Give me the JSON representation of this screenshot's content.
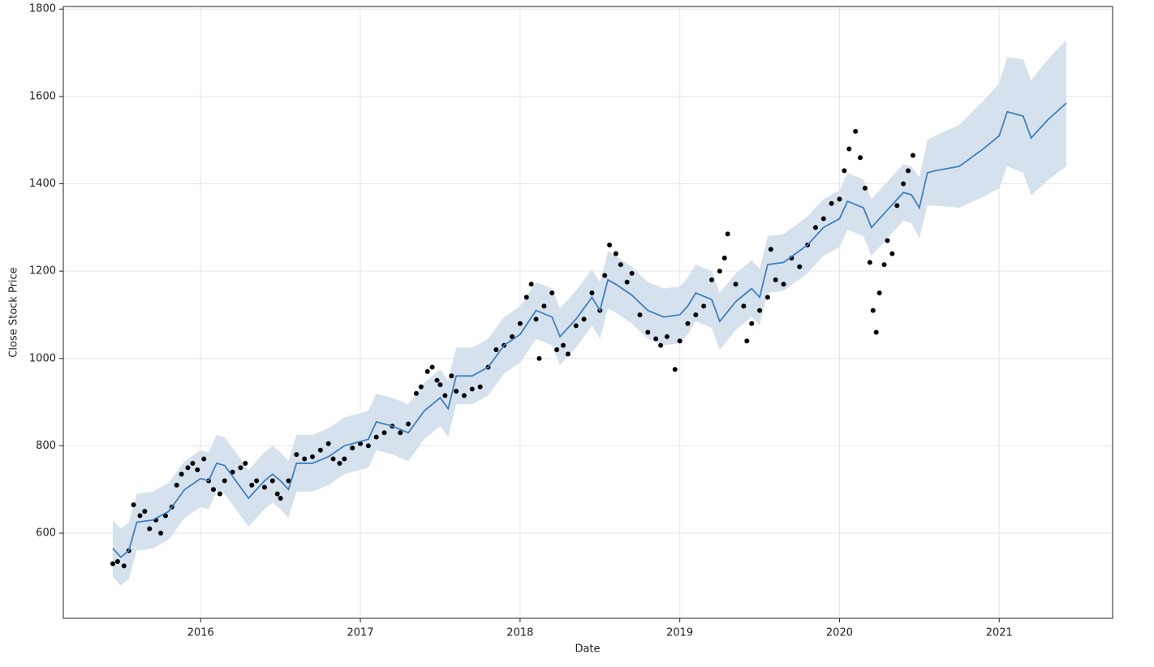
{
  "chart_data": {
    "type": "scatter",
    "xlabel": "Date",
    "ylabel": "Close Stock Price",
    "color": "#000000",
    "line_color": "#3f7fbf",
    "band_color": "#d5e2ed",
    "grid": true,
    "xlim": [
      2015.14,
      2021.71
    ],
    "ylim": [
      405,
      1806
    ],
    "xticks": [
      2016,
      2017,
      2018,
      2019,
      2020,
      2021
    ],
    "yticks": [
      600,
      800,
      1000,
      1200,
      1400,
      1600,
      1800
    ],
    "x": [
      2015.45,
      2015.48,
      2015.52,
      2015.55,
      2015.58,
      2015.62,
      2015.65,
      2015.68,
      2015.72,
      2015.75,
      2015.78,
      2015.82,
      2015.85,
      2015.88,
      2015.92,
      2015.95,
      2015.98,
      2016.02,
      2016.05,
      2016.08,
      2016.12,
      2016.15,
      2016.2,
      2016.25,
      2016.28,
      2016.32,
      2016.35,
      2016.4,
      2016.45,
      2016.48,
      2016.5,
      2016.55,
      2016.6,
      2016.65,
      2016.7,
      2016.75,
      2016.8,
      2016.83,
      2016.87,
      2016.9,
      2016.95,
      2017.0,
      2017.05,
      2017.1,
      2017.15,
      2017.2,
      2017.25,
      2017.3,
      2017.35,
      2017.38,
      2017.42,
      2017.45,
      2017.48,
      2017.5,
      2017.53,
      2017.57,
      2017.6,
      2017.65,
      2017.7,
      2017.75,
      2017.8,
      2017.85,
      2017.9,
      2017.95,
      2018.0,
      2018.04,
      2018.07,
      2018.1,
      2018.12,
      2018.15,
      2018.2,
      2018.23,
      2018.27,
      2018.3,
      2018.35,
      2018.4,
      2018.45,
      2018.5,
      2018.53,
      2018.56,
      2018.6,
      2018.63,
      2018.67,
      2018.7,
      2018.75,
      2018.8,
      2018.85,
      2018.88,
      2018.92,
      2018.97,
      2019.0,
      2019.05,
      2019.1,
      2019.15,
      2019.2,
      2019.25,
      2019.28,
      2019.3,
      2019.35,
      2019.4,
      2019.42,
      2019.45,
      2019.5,
      2019.55,
      2019.57,
      2019.6,
      2019.65,
      2019.7,
      2019.75,
      2019.8,
      2019.85,
      2019.9,
      2019.95,
      2020.0,
      2020.03,
      2020.06,
      2020.1,
      2020.13,
      2020.16,
      2020.19,
      2020.21,
      2020.23,
      2020.25,
      2020.28,
      2020.3,
      2020.33,
      2020.36,
      2020.4,
      2020.43,
      2020.46
    ],
    "values": [
      530,
      535,
      525,
      560,
      665,
      640,
      650,
      610,
      630,
      600,
      640,
      660,
      710,
      735,
      750,
      760,
      745,
      770,
      720,
      700,
      690,
      720,
      740,
      750,
      760,
      710,
      720,
      705,
      720,
      690,
      680,
      720,
      780,
      770,
      775,
      790,
      805,
      770,
      760,
      770,
      795,
      805,
      800,
      820,
      830,
      845,
      830,
      850,
      920,
      935,
      970,
      980,
      950,
      940,
      915,
      960,
      925,
      915,
      930,
      935,
      980,
      1020,
      1030,
      1050,
      1080,
      1140,
      1170,
      1090,
      1000,
      1120,
      1150,
      1020,
      1030,
      1010,
      1075,
      1090,
      1150,
      1110,
      1190,
      1260,
      1240,
      1215,
      1175,
      1195,
      1100,
      1060,
      1045,
      1030,
      1050,
      975,
      1040,
      1080,
      1100,
      1120,
      1180,
      1200,
      1230,
      1285,
      1170,
      1120,
      1040,
      1080,
      1110,
      1140,
      1250,
      1180,
      1170,
      1230,
      1210,
      1260,
      1300,
      1320,
      1355,
      1365,
      1430,
      1480,
      1520,
      1460,
      1390,
      1220,
      1110,
      1060,
      1150,
      1215,
      1270,
      1240,
      1350,
      1400,
      1430,
      1465
    ],
    "forecast_x": [
      2015.45,
      2015.5,
      2015.55,
      2015.6,
      2015.7,
      2015.8,
      2015.9,
      2016.0,
      2016.05,
      2016.1,
      2016.15,
      2016.25,
      2016.3,
      2016.4,
      2016.45,
      2016.5,
      2016.55,
      2016.6,
      2016.7,
      2016.8,
      2016.9,
      2017.0,
      2017.05,
      2017.1,
      2017.2,
      2017.3,
      2017.4,
      2017.5,
      2017.55,
      2017.6,
      2017.7,
      2017.8,
      2017.9,
      2018.0,
      2018.1,
      2018.2,
      2018.25,
      2018.35,
      2018.45,
      2018.5,
      2018.55,
      2018.6,
      2018.7,
      2018.8,
      2018.9,
      2019.0,
      2019.05,
      2019.1,
      2019.2,
      2019.25,
      2019.35,
      2019.45,
      2019.5,
      2019.55,
      2019.65,
      2019.8,
      2019.9,
      2020.0,
      2020.05,
      2020.15,
      2020.2,
      2020.3,
      2020.4,
      2020.45,
      2020.5,
      2020.55,
      2020.6,
      2020.75,
      2020.9,
      2021.0,
      2021.05,
      2021.15,
      2021.2,
      2021.3,
      2021.42
    ],
    "forecast_values": [
      565,
      545,
      560,
      625,
      630,
      650,
      700,
      725,
      720,
      760,
      755,
      705,
      680,
      720,
      735,
      720,
      700,
      760,
      760,
      775,
      800,
      810,
      815,
      855,
      845,
      830,
      880,
      910,
      885,
      960,
      960,
      980,
      1030,
      1055,
      1110,
      1095,
      1050,
      1090,
      1140,
      1110,
      1180,
      1170,
      1145,
      1110,
      1095,
      1100,
      1120,
      1150,
      1135,
      1085,
      1130,
      1160,
      1140,
      1215,
      1220,
      1260,
      1300,
      1320,
      1360,
      1345,
      1300,
      1340,
      1380,
      1375,
      1345,
      1425,
      1430,
      1440,
      1480,
      1510,
      1565,
      1555,
      1505,
      1545,
      1585
    ],
    "forecast_upper": [
      630,
      610,
      625,
      690,
      695,
      715,
      765,
      790,
      785,
      825,
      820,
      770,
      745,
      785,
      800,
      785,
      765,
      825,
      825,
      840,
      865,
      875,
      880,
      920,
      910,
      895,
      945,
      975,
      950,
      1025,
      1025,
      1045,
      1095,
      1120,
      1175,
      1160,
      1115,
      1155,
      1205,
      1175,
      1245,
      1235,
      1210,
      1175,
      1160,
      1165,
      1185,
      1215,
      1200,
      1150,
      1195,
      1225,
      1205,
      1280,
      1285,
      1325,
      1365,
      1385,
      1425,
      1410,
      1365,
      1405,
      1445,
      1440,
      1415,
      1500,
      1510,
      1535,
      1590,
      1630,
      1690,
      1685,
      1637,
      1683,
      1730
    ],
    "forecast_lower": [
      500,
      480,
      495,
      560,
      565,
      585,
      635,
      660,
      655,
      695,
      690,
      640,
      615,
      655,
      670,
      655,
      635,
      695,
      695,
      710,
      735,
      745,
      750,
      790,
      780,
      765,
      815,
      845,
      820,
      895,
      895,
      915,
      965,
      990,
      1045,
      1030,
      985,
      1025,
      1075,
      1045,
      1115,
      1105,
      1080,
      1045,
      1030,
      1035,
      1055,
      1085,
      1070,
      1020,
      1065,
      1095,
      1075,
      1150,
      1155,
      1195,
      1235,
      1255,
      1295,
      1280,
      1235,
      1275,
      1315,
      1310,
      1275,
      1350,
      1350,
      1345,
      1370,
      1390,
      1440,
      1425,
      1373,
      1407,
      1440
    ]
  }
}
